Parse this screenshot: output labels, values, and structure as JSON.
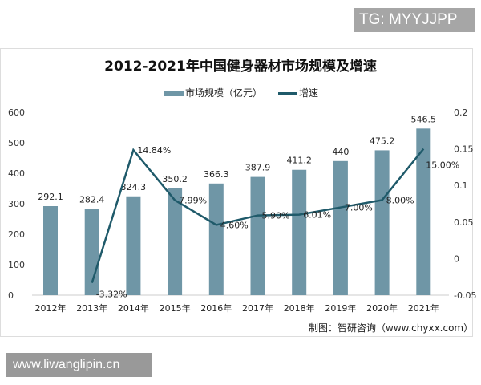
{
  "watermark_top": "TG: MYYJJPP",
  "watermark_bottom": "www.liwanglipin.cn",
  "source": "制图：智研咨询（www.chyxx.com）",
  "logo_watermark": "智研咨询 www.chyxx.com",
  "chart_data": {
    "type": "bar+line",
    "title": "2012-2021年中国健身器材市场规模及增速",
    "categories": [
      "2012年",
      "2013年",
      "2014年",
      "2015年",
      "2016年",
      "2017年",
      "2018年",
      "2019年",
      "2020年",
      "2021年"
    ],
    "series": [
      {
        "name": "市场规模（亿元）",
        "type": "bar",
        "axis": "left",
        "color": "#6f96a6",
        "values": [
          292.1,
          282.4,
          324.3,
          350.2,
          366.3,
          387.9,
          411.2,
          440,
          475.2,
          546.5
        ],
        "labels": [
          "292.1",
          "282.4",
          "324.3",
          "350.2",
          "366.3",
          "387.9",
          "411.2",
          "440",
          "475.2",
          "546.5"
        ]
      },
      {
        "name": "增速",
        "type": "line",
        "axis": "right",
        "color": "#1f5a6a",
        "values": [
          null,
          -0.0332,
          0.1484,
          0.0799,
          0.046,
          0.059,
          0.0601,
          0.07,
          0.08,
          0.15
        ],
        "labels": [
          "",
          "-3.32%",
          "14.84%",
          "7.99%",
          "4.60%",
          "5.90%",
          "6.01%",
          "7.00%",
          "8.00%",
          "15.00%"
        ]
      }
    ],
    "left_axis": {
      "ylim": [
        0,
        600
      ],
      "ticks": [
        "0",
        "100",
        "200",
        "300",
        "400",
        "500",
        "600"
      ]
    },
    "right_axis": {
      "ylim": [
        -0.05,
        0.2
      ],
      "ticks": [
        "-0.05",
        "0",
        "0.05",
        "0.1",
        "0.15",
        "0.2"
      ]
    },
    "grid": false,
    "legend": "top"
  }
}
